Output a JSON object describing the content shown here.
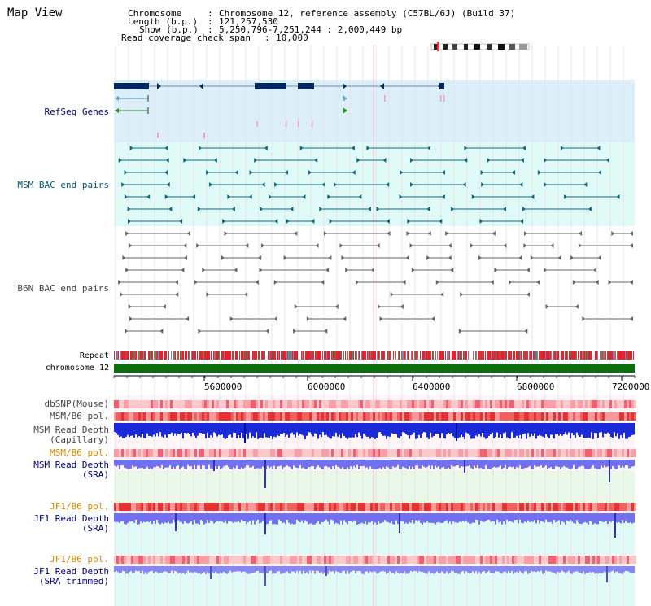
{
  "title": "Map View",
  "info": {
    "chromosome_key": "Chromosome",
    "chromosome_val": "Chromosome 12, reference assembly (C57BL/6J) (Build 37)",
    "length_key": "Length (b.p.)",
    "length_val": "121,257,530",
    "show_key": "Show (b.p.)",
    "show_val": "5,250,796-7,251,244 : 2,000,449 bp",
    "coverage_key": "Read coverage check span",
    "coverage_val": "10,000"
  },
  "tracks": {
    "refseq": "RefSeq Genes",
    "msm_bac": "MSM BAC end pairs",
    "b6n_bac": "B6N BAC end pairs",
    "repeat": "Repeat",
    "chromosome": "chromosome 12",
    "dbsnp": "dbSNP(Mouse)",
    "msm_b6_pol_1": "MSM/B6 pol.",
    "msm_depth_cap_1": "MSM Read Depth",
    "msm_depth_cap_2": "(Capillary)",
    "msm_b6_pol_2": "MSM/B6 pol.",
    "msm_depth_sra_1": "MSM Read Depth",
    "msm_depth_sra_2": "(SRA)",
    "jf1_b6_pol_1": "JF1/B6 pol.",
    "jf1_depth_sra_1": "JF1 Read Depth",
    "jf1_depth_sra_2": "(SRA)",
    "jf1_b6_pol_2": "JF1/B6 pol.",
    "jf1_depth_trim_1": "JF1 Read Depth",
    "jf1_depth_trim_2": "(SRA trimmed)"
  },
  "axis": {
    "ticks": [
      "5600000",
      "6000000",
      "6400000",
      "6800000",
      "7200000"
    ]
  },
  "colors": {
    "refseq_bg": "#dceefa",
    "msm_bac_bg": "#e0faf8",
    "repeat_red": "#e8202a",
    "chromosome_green": "#0a6e0a",
    "navy": "#000080",
    "teal_text": "#005870",
    "orange_text": "#d88a00",
    "depth_blue": "#1a2ad8",
    "depth_light": "#7070f0"
  }
}
